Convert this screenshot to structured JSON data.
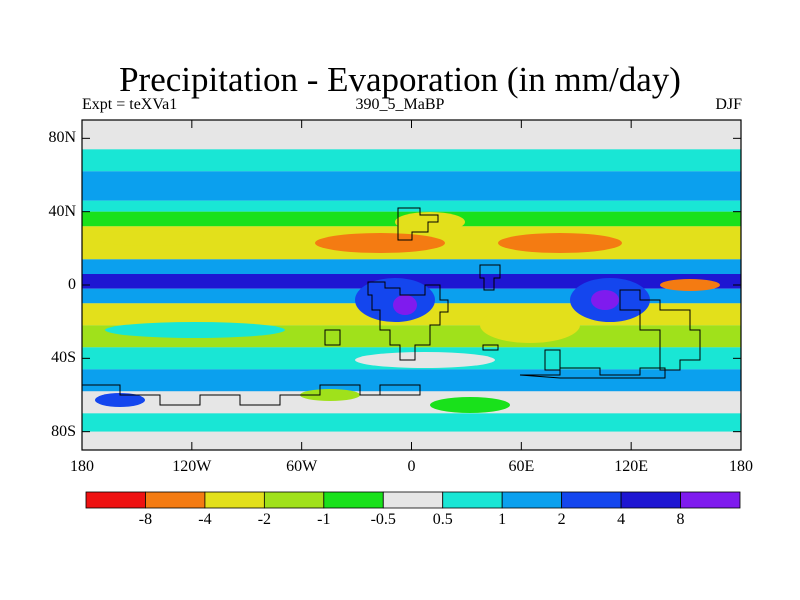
{
  "chart_data": {
    "type": "heatmap",
    "title": "Precipitation - Evaporation (in mm/day)",
    "subtitle_left": "Expt = teXVa1",
    "subtitle_center": "390_5_MaBP",
    "subtitle_right": "DJF",
    "x_ticks": [
      {
        "value": -180,
        "label": "180"
      },
      {
        "value": -120,
        "label": "120W"
      },
      {
        "value": -60,
        "label": "60W"
      },
      {
        "value": 0,
        "label": "0"
      },
      {
        "value": 60,
        "label": "60E"
      },
      {
        "value": 120,
        "label": "120E"
      },
      {
        "value": 180,
        "label": "180"
      }
    ],
    "y_ticks": [
      {
        "value": 80,
        "label": "80N"
      },
      {
        "value": 40,
        "label": "40N"
      },
      {
        "value": 0,
        "label": "0"
      },
      {
        "value": -40,
        "label": "40S"
      },
      {
        "value": -80,
        "label": "80S"
      }
    ],
    "xlim": [
      -180,
      180
    ],
    "ylim": [
      -90,
      90
    ],
    "colorbar": {
      "colors": [
        "#ee1111",
        "#f47b12",
        "#e3e01b",
        "#a0e11b",
        "#19e11b",
        "#e6e6e6",
        "#19e6d5",
        "#0ba0ee",
        "#1446ee",
        "#1e16d2",
        "#7f1bee"
      ],
      "labels": [
        "-8",
        "-4",
        "-2",
        "-1",
        "-0.5",
        "0.5",
        "1",
        "2",
        "4",
        "8"
      ],
      "levels": [
        -8,
        -4,
        -2,
        -1,
        -0.5,
        0.5,
        1,
        2,
        4,
        8
      ]
    },
    "zonal_pattern": [
      {
        "lat_range": [
          74,
          90
        ],
        "value": 0
      },
      {
        "lat_range": [
          62,
          74
        ],
        "value": 0.7
      },
      {
        "lat_range": [
          46,
          62
        ],
        "value": 1.5
      },
      {
        "lat_range": [
          40,
          46
        ],
        "value": 0.8
      },
      {
        "lat_range": [
          32,
          40
        ],
        "value": -0.8
      },
      {
        "lat_range": [
          14,
          32
        ],
        "value": -2.5
      },
      {
        "lat_range": [
          6,
          14
        ],
        "value": 1.5
      },
      {
        "lat_range": [
          -2,
          6
        ],
        "value": 5
      },
      {
        "lat_range": [
          -10,
          -2
        ],
        "value": 1.5
      },
      {
        "lat_range": [
          -22,
          -10
        ],
        "value": -2.5
      },
      {
        "lat_range": [
          -34,
          -22
        ],
        "value": -1.2
      },
      {
        "lat_range": [
          -46,
          -34
        ],
        "value": 0.7
      },
      {
        "lat_range": [
          -58,
          -46
        ],
        "value": 1.5
      },
      {
        "lat_range": [
          -70,
          -58
        ],
        "value": 0
      },
      {
        "lat_range": [
          -80,
          -70
        ],
        "value": 0.7
      },
      {
        "lat_range": [
          -90,
          -80
        ],
        "value": 0
      }
    ]
  }
}
